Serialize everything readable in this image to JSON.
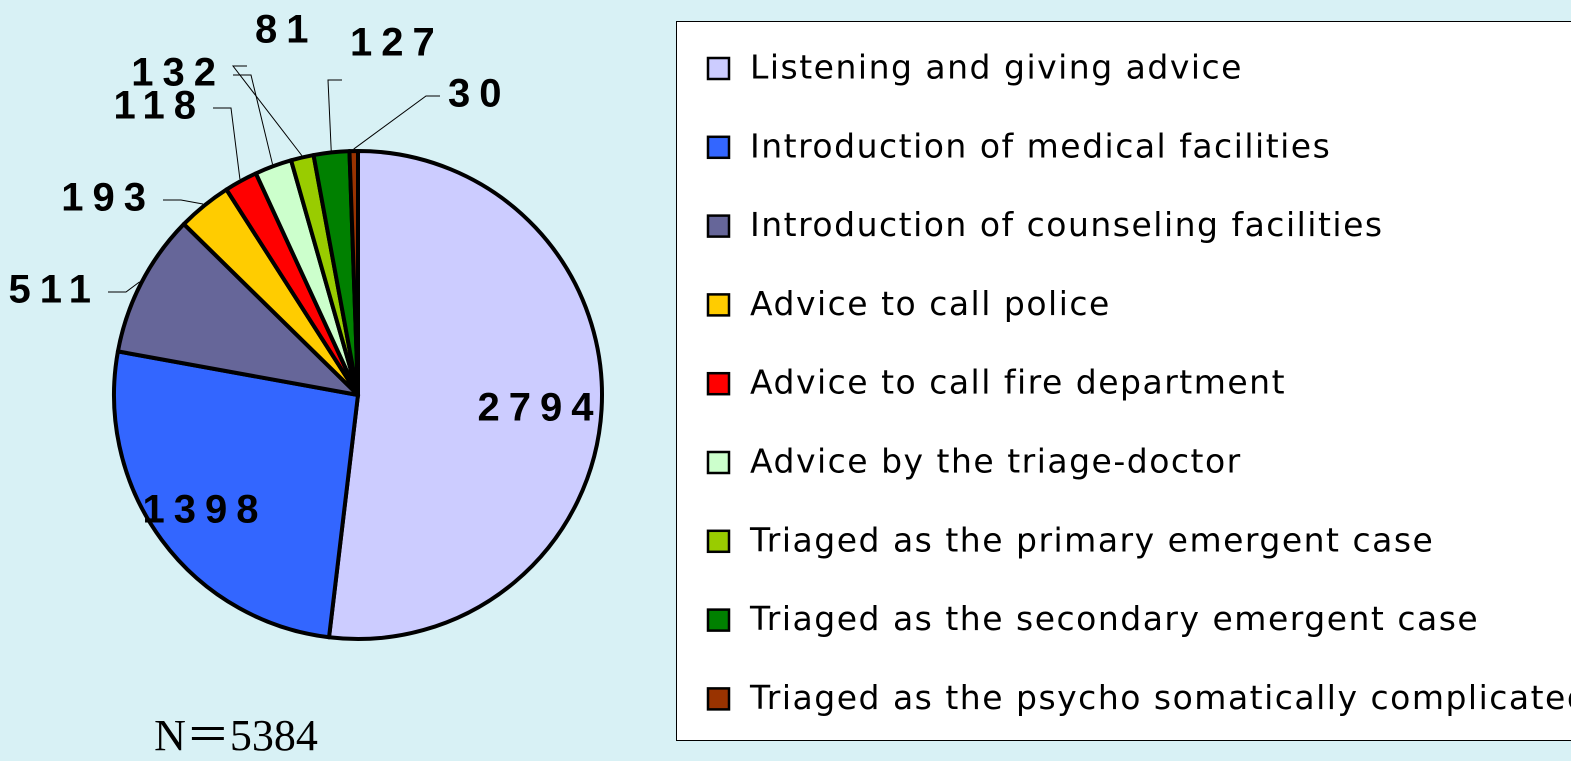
{
  "chart_data": {
    "type": "pie",
    "categories": [
      "Listening and giving advice",
      "Introduction of medical facilities",
      "Introduction of counseling facilities",
      "Advice to call police",
      "Advice to call fire department",
      "Advice by the triage-doctor",
      "Triaged as the primary emergent case",
      "Triaged as the secondary emergent case",
      "Triaged as the psycho somatically complicated"
    ],
    "values": [
      2794,
      1398,
      511,
      193,
      118,
      132,
      81,
      127,
      30
    ],
    "colors": [
      "#ccccff",
      "#3366ff",
      "#666699",
      "#ffcc00",
      "#ff0000",
      "#ccffcc",
      "#99cc00",
      "#008000",
      "#993300"
    ],
    "note": "N＝5384",
    "legend": "right"
  }
}
